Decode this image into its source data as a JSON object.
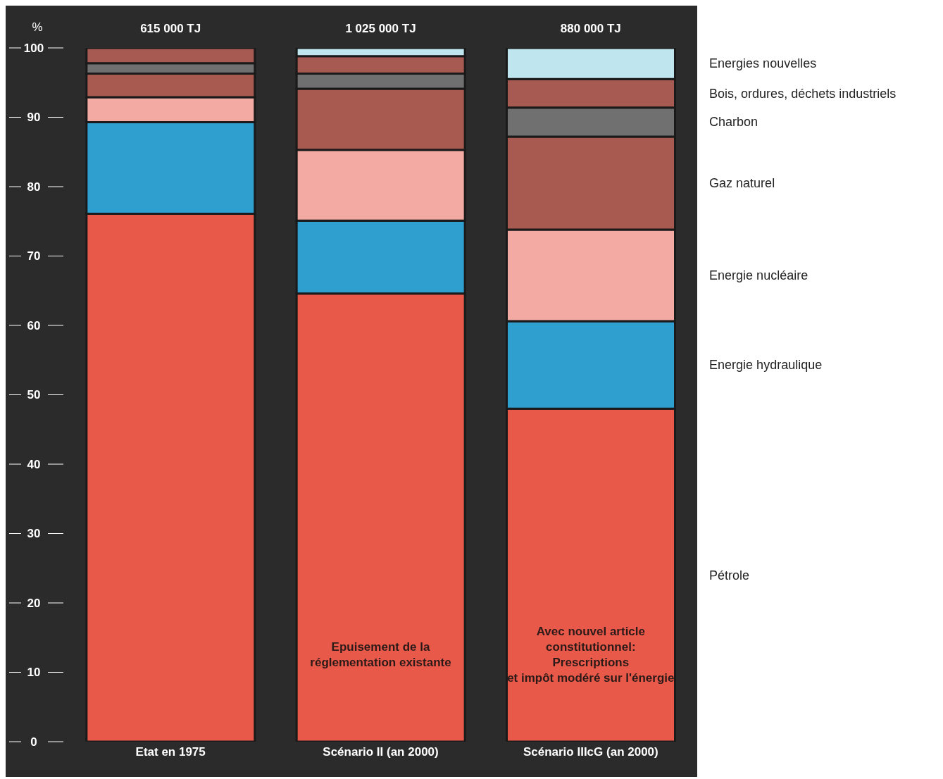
{
  "chart_data": {
    "type": "bar",
    "stacked": true,
    "ylabel": "%",
    "categories": [
      "Etat en 1975",
      "Scénario II (an 2000)",
      "Scénario IIIcG (an 2000)"
    ],
    "series": [
      {
        "name": "Pétrole",
        "color": "#e8594a",
        "values": [
          76.1,
          64.6,
          48.0
        ]
      },
      {
        "name": "Energie hydraulique",
        "color": "#2f9fd0",
        "values": [
          13.2,
          10.5,
          12.6
        ]
      },
      {
        "name": "Energie nucléaire",
        "color": "#f2aaa2",
        "values": [
          3.6,
          10.2,
          13.2
        ]
      },
      {
        "name": "Gaz naturel",
        "color": "#a85a50",
        "values": [
          3.4,
          8.8,
          13.4
        ]
      },
      {
        "name": "Charbon",
        "color": "#707070",
        "values": [
          1.5,
          2.2,
          4.2
        ]
      },
      {
        "name": "Bois, ordures, déchets industriels",
        "color": "#a65a52",
        "values": [
          2.2,
          2.5,
          4.1
        ]
      },
      {
        "name": "Energies nouvelles",
        "color": "#bfe6ee",
        "values": [
          0,
          1.2,
          4.5
        ]
      }
    ],
    "annotations": [
      {
        "text": "615 000 TJ",
        "x": "Etat en 1975",
        "y": 100
      },
      {
        "text": "1 025 000 TJ",
        "x": "Scénario II (an 2000)",
        "y": 100
      },
      {
        "text": "880 000 TJ",
        "x": "Scénario IIIcG (an 2000)",
        "y": 100
      },
      "Epuisement de la\nréglementation existante",
      "Avec nouvel article\nconstitutionnel:\nPrescriptions\net impôt modéré sur l'énergie"
    ],
    "ylim": [
      0,
      100
    ],
    "yticks": [
      0,
      10,
      20,
      30,
      40,
      50,
      60,
      70,
      80,
      90,
      100
    ]
  }
}
